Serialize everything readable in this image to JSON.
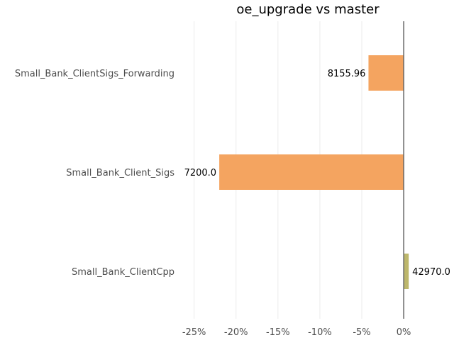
{
  "chart_data": {
    "type": "bar",
    "orientation": "horizontal",
    "title": "oe_upgrade vs master",
    "xlabel": "",
    "ylabel": "",
    "categories": [
      "Small_Bank_ClientSigs_Forwarding",
      "Small_Bank_Client_Sigs",
      "Small_Bank_ClientCpp"
    ],
    "values": [
      -4.2,
      -22.0,
      0.6
    ],
    "data_labels": [
      "8155.96",
      "7200.0",
      "42970.0"
    ],
    "bar_colors": [
      "#f4a460",
      "#f4a460",
      "#bdb76b"
    ],
    "xlim": [
      -27,
      0.5
    ],
    "xticks": [
      -25,
      -20,
      -15,
      -10,
      -5,
      0
    ],
    "xtick_labels": [
      "-25%",
      "-20%",
      "-15%",
      "-10%",
      "-5%",
      "0%"
    ],
    "grid": true,
    "legend": "none"
  }
}
